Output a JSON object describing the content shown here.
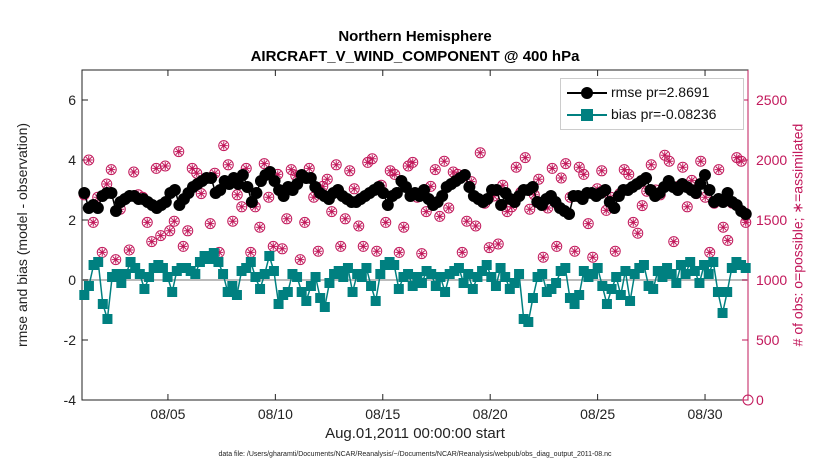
{
  "chart_data": {
    "type": "line",
    "title": "Northern Hemisphere",
    "subtitle": "AIRCRAFT_V_WIND_COMPONENT @ 400 hPa",
    "xlabel": "Aug.01,2011 00:00:00 start",
    "ylabel_left": "rmse and bias (model - observation)",
    "ylabel_right": "# of obs: o=possible; ∗=assimilated",
    "footnote": "data file: /Users/gharamti/Documents/NCAR/Reanalysis/~/Documents/NCAR/Reanalysis/webpub/obs_diag_output_2011-08.nc",
    "x_ticks": [
      "08/05",
      "08/10",
      "08/15",
      "08/20",
      "08/25",
      "08/30"
    ],
    "x_tick_days": [
      5,
      10,
      15,
      20,
      25,
      30
    ],
    "xlim_days": [
      1,
      32
    ],
    "ylim_left": [
      -4,
      7
    ],
    "yticks_left": [
      -4,
      -2,
      0,
      2,
      4,
      6
    ],
    "ylim_right": [
      0,
      2750
    ],
    "yticks_right": [
      0,
      500,
      1000,
      1500,
      2000,
      2500
    ],
    "grid": false,
    "legend_position": "top-right",
    "colors": {
      "rmse": "#000000",
      "bias": "#008080",
      "obs": "#c2185b",
      "zero_line": "#bbbbbb"
    },
    "series": [
      {
        "name": "rmse pr=2.8691",
        "axis": "left",
        "values": [
          2.9,
          2.4,
          2.5,
          2.4,
          2.8,
          2.9,
          2.9,
          2.3,
          2.6,
          2.7,
          2.8,
          2.8,
          2.7,
          2.7,
          2.6,
          2.5,
          2.4,
          2.5,
          2.6,
          2.9,
          3.0,
          2.5,
          2.7,
          2.9,
          3.1,
          3.2,
          3.3,
          3.4,
          3.4,
          2.9,
          3.0,
          3.3,
          3.2,
          3.4,
          3.2,
          3.5,
          3.1,
          2.6,
          2.9,
          3.3,
          3.5,
          3.6,
          3.3,
          3.0,
          2.8,
          3.1,
          3.0,
          3.2,
          3.5,
          3.4,
          3.4,
          3.1,
          2.9,
          2.8,
          2.7,
          2.9,
          3.0,
          2.8,
          2.7,
          2.6,
          2.6,
          2.7,
          2.8,
          2.9,
          3.0,
          3.1,
          2.9,
          2.5,
          2.8,
          2.9,
          3.3,
          3.1,
          2.8,
          2.9,
          2.8,
          3.0,
          2.7,
          2.5,
          2.6,
          2.8,
          3.1,
          3.2,
          3.3,
          3.4,
          3.5,
          3.1,
          2.8,
          2.7,
          2.6,
          2.7,
          3.0,
          3.0,
          2.5,
          2.9,
          2.7,
          2.6,
          2.8,
          3.0,
          3.0,
          3.1,
          2.6,
          2.5,
          2.7,
          2.8,
          2.6,
          2.4,
          2.3,
          2.2,
          2.8,
          2.8,
          2.7,
          2.9,
          2.9,
          2.8,
          2.9,
          3.0,
          2.6,
          2.4,
          2.8,
          3.0,
          3.0,
          3.1,
          3.2,
          3.3,
          3.4,
          3.0,
          2.8,
          2.9,
          3.1,
          3.3,
          3.1,
          3.0,
          3.2,
          3.1,
          3.0,
          2.9,
          3.2,
          3.5,
          3.0,
          2.6,
          2.7,
          2.6,
          2.9,
          2.6,
          2.5,
          2.3,
          2.2
        ]
      },
      {
        "name": "bias pr=-0.08236",
        "axis": "left",
        "values": [
          -0.5,
          -0.2,
          0.5,
          0.6,
          -0.8,
          -1.3,
          0.1,
          0.2,
          -0.1,
          0.2,
          0.6,
          0.4,
          0.2,
          -0.3,
          0.1,
          0.4,
          0.5,
          0.4,
          0.1,
          -0.4,
          0.3,
          0.4,
          0.4,
          0.3,
          0.2,
          0.6,
          0.8,
          0.7,
          0.9,
          0.6,
          0.2,
          -0.4,
          -0.2,
          -0.5,
          0.3,
          0.4,
          0.6,
          0.1,
          -0.3,
          0.2,
          0.8,
          0.3,
          -0.8,
          -0.5,
          -0.4,
          0.2,
          0.1,
          -0.4,
          -0.7,
          -0.2,
          0.1,
          -0.6,
          -0.9,
          -0.1,
          0.2,
          0.3,
          0.1,
          0.4,
          -0.4,
          0.2,
          0.1,
          0.4,
          -0.2,
          -0.7,
          0.2,
          0.5,
          0.6,
          0.5,
          -0.3,
          0.1,
          0.2,
          -0.2,
          0.1,
          -0.1,
          0.3,
          0.2,
          -0.2,
          0.1,
          -0.4,
          0.2,
          0.3,
          0.4,
          -0.1,
          0.2,
          -0.3,
          0.1,
          0.3,
          0.5,
          0.1,
          -0.2,
          0.4,
          0.1,
          -0.3,
          -0.1,
          0.2,
          -1.3,
          -1.4,
          -0.6,
          0.1,
          0.2,
          -0.4,
          -0.3,
          -0.1,
          0.3,
          0.4,
          -0.6,
          -0.8,
          -0.5,
          0.3,
          0.1,
          0.2,
          0.4,
          -0.2,
          -0.8,
          -0.3,
          0.1,
          -0.5,
          0.3,
          -0.7,
          0.2,
          0.4,
          0.5,
          -0.2,
          -0.3,
          0.3,
          0.1,
          0.4,
          0.2,
          -0.1,
          0.5,
          0.2,
          0.6,
          0.3,
          -0.1,
          0.5,
          0.2,
          0.6,
          -0.4,
          -1.1,
          -0.4,
          0.4,
          0.6,
          0.5,
          0.4
        ]
      },
      {
        "name": "# of obs possible",
        "axis": "right",
        "marker": "circle",
        "values": [
          1710,
          2000,
          1480,
          1690,
          1230,
          1800,
          1920,
          1170,
          1590,
          1670,
          1250,
          1900,
          1710,
          1690,
          1480,
          1320,
          1930,
          1370,
          1950,
          1410,
          1490,
          2070,
          1280,
          1410,
          1930,
          1890,
          1720,
          1190,
          1470,
          1890,
          1230,
          2120,
          1960,
          1490,
          1710,
          1610,
          1930,
          1230,
          1610,
          1440,
          1970,
          1690,
          1280,
          1880,
          1260,
          1510,
          1920,
          1870,
          1170,
          1480,
          1930,
          1690,
          1240,
          1780,
          1840,
          1570,
          1960,
          1280,
          1510,
          1910,
          1760,
          1450,
          1280,
          1980,
          2010,
          1240,
          1790,
          1480,
          1910,
          1880,
          1230,
          1440,
          1950,
          1980,
          1690,
          1220,
          1570,
          1780,
          1920,
          1530,
          1990,
          1600,
          1900,
          1880,
          1230,
          1490,
          1820,
          1450,
          2060,
          1640,
          1270,
          1700,
          1300,
          1790,
          1570,
          1610,
          1940,
          1730,
          2020,
          1590,
          1710,
          1840,
          1190,
          1600,
          1930,
          1280,
          1850,
          1970,
          1690,
          1240,
          1940,
          1880,
          1470,
          1190,
          1760,
          1910,
          1580,
          1690,
          1240,
          1720,
          1920,
          1880,
          1480,
          1390,
          1620,
          1740,
          1960,
          1750,
          1710,
          2040,
          1990,
          1320,
          1780,
          1940,
          1610,
          1830,
          1720,
          1990,
          1690,
          1230,
          1640,
          1920,
          1440,
          1330,
          1640,
          2020,
          1990,
          1480
        ]
      },
      {
        "name": "# of obs assimilated",
        "axis": "right",
        "marker": "asterisk",
        "values": [
          1710,
          2000,
          1480,
          1690,
          1230,
          1800,
          1920,
          1170,
          1590,
          1670,
          1250,
          1900,
          1710,
          1690,
          1480,
          1320,
          1930,
          1370,
          1950,
          1410,
          1490,
          2070,
          1280,
          1410,
          1930,
          1890,
          1720,
          1190,
          1470,
          1890,
          1230,
          2120,
          1960,
          1490,
          1710,
          1610,
          1930,
          1230,
          1610,
          1440,
          1970,
          1690,
          1280,
          1880,
          1260,
          1510,
          1920,
          1870,
          1170,
          1480,
          1930,
          1690,
          1240,
          1780,
          1840,
          1570,
          1960,
          1280,
          1510,
          1910,
          1760,
          1450,
          1280,
          1980,
          2010,
          1240,
          1790,
          1480,
          1910,
          1880,
          1230,
          1440,
          1950,
          1980,
          1690,
          1220,
          1570,
          1780,
          1920,
          1530,
          1990,
          1600,
          1900,
          1880,
          1230,
          1490,
          1820,
          1450,
          2060,
          1640,
          1270,
          1700,
          1300,
          1790,
          1570,
          1610,
          1940,
          1730,
          2020,
          1590,
          1710,
          1840,
          1190,
          1600,
          1930,
          1280,
          1850,
          1970,
          1690,
          1240,
          1940,
          1880,
          1470,
          1190,
          1760,
          1910,
          1580,
          1690,
          1240,
          1720,
          1920,
          1880,
          1480,
          1390,
          1620,
          1740,
          1960,
          1750,
          1710,
          2040,
          1990,
          1320,
          1780,
          1940,
          1610,
          1830,
          1720,
          1990,
          1690,
          1230,
          1640,
          1920,
          1440,
          1330,
          1640,
          2020,
          1990,
          1480
        ]
      }
    ]
  }
}
